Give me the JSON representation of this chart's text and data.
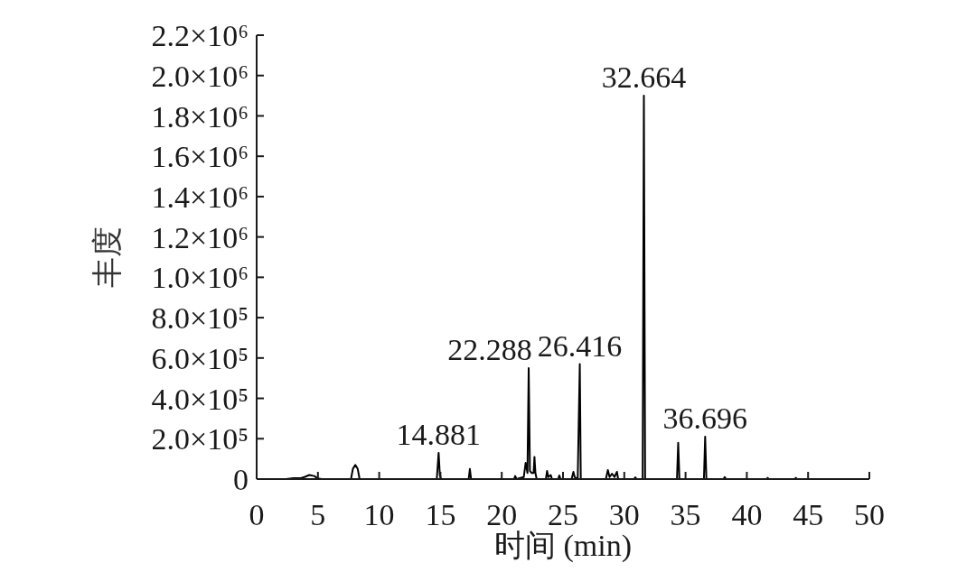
{
  "chart_data": {
    "type": "line",
    "xlabel": "时间 (min)",
    "ylabel": "丰度",
    "color": "#000000",
    "x": [
      2.4,
      3.0,
      3.6,
      3.9,
      4.3,
      4.7,
      5.0,
      5.3,
      7.7,
      7.85,
      8.05,
      8.25,
      8.4,
      14.7,
      14.85,
      14.95,
      15.05,
      17.3,
      17.4,
      17.5,
      21.0,
      21.1,
      21.2,
      21.8,
      21.95,
      22.1,
      22.2,
      22.3,
      22.45,
      22.6,
      22.67,
      22.75,
      22.85,
      23.6,
      23.7,
      23.8,
      24.0,
      24.1,
      24.6,
      24.7,
      24.8,
      25.7,
      25.85,
      25.95,
      26.2,
      26.37,
      26.45,
      28.5,
      28.66,
      28.8,
      29.0,
      29.2,
      29.4,
      29.5,
      30.8,
      30.9,
      31.0,
      31.5,
      31.6,
      31.7,
      34.3,
      34.4,
      34.5,
      36.5,
      36.6,
      36.7,
      38.1,
      38.2,
      38.3,
      41.6,
      41.7,
      41.8,
      43.9,
      44.0,
      44.1,
      44.5
    ],
    "values": [
      0,
      5000,
      5000,
      10000,
      20000,
      15000,
      3000,
      0,
      0,
      50000,
      70000,
      50000,
      0,
      0,
      130000,
      20000,
      0,
      0,
      50000,
      0,
      0,
      15000,
      0,
      10000,
      80000,
      30000,
      550000,
      40000,
      30000,
      30000,
      110000,
      30000,
      0,
      0,
      40000,
      10000,
      20000,
      0,
      0,
      18000,
      0,
      0,
      36000,
      10000,
      0,
      570000,
      0,
      0,
      45000,
      10000,
      27000,
      10000,
      36000,
      0,
      0,
      9000,
      0,
      0,
      1900000,
      0,
      0,
      180000,
      0,
      0,
      210000,
      0,
      0,
      10000,
      0,
      0,
      6000,
      0,
      0,
      6000,
      0,
      0
    ],
    "xlim": [
      0,
      50
    ],
    "xticks": [
      0,
      5,
      10,
      15,
      20,
      25,
      30,
      35,
      40,
      45,
      50
    ],
    "ylim": [
      0,
      2200000
    ],
    "yticks": [
      0,
      {
        "value": 200000,
        "label": "2.0×10⁵"
      },
      {
        "value": 400000,
        "label": "4.0×10⁵"
      },
      {
        "value": 600000,
        "label": "6.0×10⁵"
      },
      {
        "value": 800000,
        "label": "8.0×10⁵"
      },
      {
        "value": 1000000,
        "label": "1.0×10⁶"
      },
      {
        "value": 1200000,
        "label": "1.2×10⁶"
      },
      {
        "value": 1400000,
        "label": "1.4×10⁶"
      },
      {
        "value": 1600000,
        "label": "1.6×10⁶"
      },
      {
        "value": 1800000,
        "label": "1.8×10⁶"
      },
      {
        "value": 2000000,
        "label": "2.0×10⁶"
      },
      {
        "value": 2200000,
        "label": "2.2×10⁶"
      }
    ],
    "annotations": [
      {
        "text": "14.881",
        "x": 14.85,
        "y": 130000
      },
      {
        "text": "22.288",
        "x": 22.2,
        "y": 550000
      },
      {
        "text": "26.416",
        "x": 26.37,
        "y": 570000
      },
      {
        "text": "32.664",
        "x": 31.6,
        "y": 1900000
      },
      {
        "text": "36.696",
        "x": 36.6,
        "y": 210000
      }
    ]
  }
}
